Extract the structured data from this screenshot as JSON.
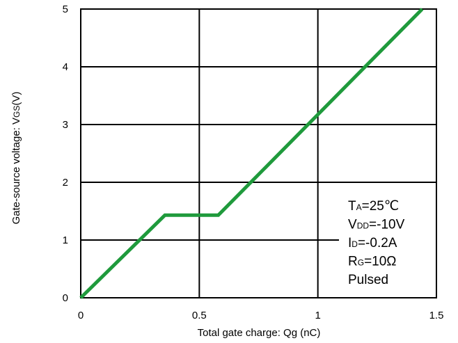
{
  "chart_data": {
    "type": "line",
    "xlabel": "Total gate charge: Qg (nC)",
    "ylabel_main": "Gate-source voltage: V",
    "ylabel_sub": "GS",
    "ylabel_unit": "(V)",
    "xlim": [
      0,
      1.5
    ],
    "ylim": [
      0,
      5
    ],
    "x_ticks": [
      0,
      0.5,
      1,
      1.5
    ],
    "x_tick_labels": [
      "0",
      "0.5",
      "1",
      "1.5"
    ],
    "y_ticks": [
      0,
      1,
      2,
      3,
      4,
      5
    ],
    "y_tick_labels": [
      "0",
      "1",
      "2",
      "3",
      "4",
      "5"
    ],
    "grid": true,
    "series": [
      {
        "color": "#1f9a3c",
        "x": [
          0,
          0.355,
          0.58,
          1.44
        ],
        "y": [
          0,
          1.43,
          1.43,
          5.0
        ]
      }
    ],
    "conditions": [
      {
        "main": "T",
        "sub": "A",
        "rest": "=25℃"
      },
      {
        "main": "V",
        "sub": "DD",
        "rest": "=-10V"
      },
      {
        "main": "I",
        "sub": "D",
        "rest": "=-0.2A"
      },
      {
        "main": "R",
        "sub": "G",
        "rest": "=10Ω"
      },
      {
        "main": "Pulsed",
        "sub": "",
        "rest": ""
      }
    ]
  }
}
